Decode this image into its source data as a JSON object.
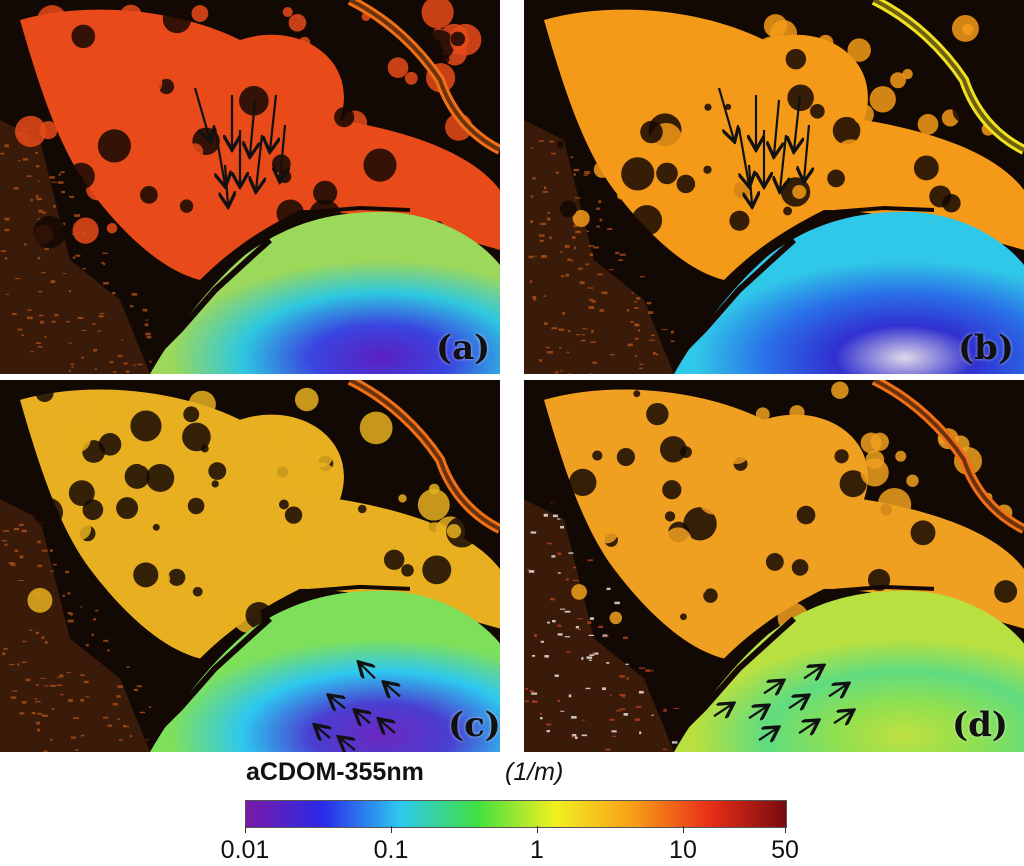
{
  "panels": [
    {
      "label": "(a)",
      "plume": "#e84a1a",
      "water_stops": [
        "#9cd85a",
        "#2ec8e0",
        "#3a44e0",
        "#5a20c0"
      ],
      "arrows": "dark",
      "arrow_direction": "south"
    },
    {
      "label": "(b)",
      "plume": "#f59a18",
      "water_stops": [
        "#30c8e8",
        "#2a70e8",
        "#3030d0",
        "#e0d8e8"
      ],
      "arrows": "dark",
      "arrow_direction": "south"
    },
    {
      "label": "(c)",
      "plume": "#e8b020",
      "water_stops": [
        "#7ee05a",
        "#2ec8f0",
        "#4a3ed0",
        "#6a28c0"
      ],
      "arrows": "dark",
      "arrow_direction": "north-west"
    },
    {
      "label": "(d)",
      "plume": "#f0a020",
      "water_stops": [
        "#b8e040",
        "#60dc80",
        "#90e050",
        "#c0e040"
      ],
      "arrows": "dark",
      "arrow_direction": "north-east"
    }
  ],
  "colorbar": {
    "title": "aCDOM-355nm",
    "units": "(1/m)",
    "colors": [
      "#7a1aa8",
      "#2a2ae8",
      "#2ec8f0",
      "#40e040",
      "#f0f020",
      "#f8a018",
      "#e83018",
      "#7a0a10"
    ],
    "ticks": [
      "0.01",
      "0.1",
      "1",
      "10",
      "50"
    ],
    "tick_values": [
      0.01,
      0.1,
      1,
      10,
      50
    ]
  }
}
